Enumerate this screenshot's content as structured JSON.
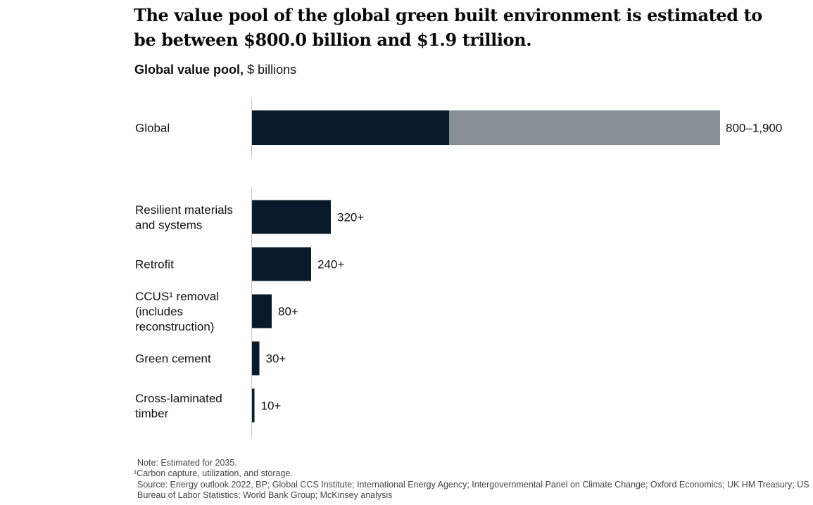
{
  "title": "The value pool of the global green built environment is estimated to be between $800.0 billion and $1.9 trillion.",
  "subtitle": {
    "bold": "Global value pool,",
    "unit": "$ billions"
  },
  "colors": {
    "dark_bar": "#081b2c",
    "range_bar": "#868f95",
    "axis": "#c8c8c8",
    "text": "#111111"
  },
  "chart_data": {
    "type": "bar",
    "orientation": "horizontal",
    "unit": "$ billions",
    "global": {
      "label": "Global",
      "low": 800,
      "high": 1900,
      "value_label": "800–1,900"
    },
    "categories": [
      [
        "Resilient materials",
        "and systems"
      ],
      [
        "Retrofit"
      ],
      [
        "CCUS¹ removal",
        "(includes",
        "reconstruction)"
      ],
      [
        "Green cement"
      ],
      [
        "Cross-laminated",
        "timber"
      ]
    ],
    "values": [
      320,
      240,
      80,
      30,
      10
    ],
    "value_labels": [
      "320+",
      "240+",
      "80+",
      "30+",
      "10+"
    ]
  },
  "footnotes": {
    "note": "Note: Estimated for 2035.",
    "footnote_1": "¹Carbon capture, utilization, and storage.",
    "source": "Source: Energy outlook 2022, BP; Global CCS Institute; International Energy Agency; Intergovernmental Panel on Climate Change; Oxford Economics; UK HM Treasury; US Bureau of Labor Statistics; World Bank Group; McKinsey analysis"
  }
}
